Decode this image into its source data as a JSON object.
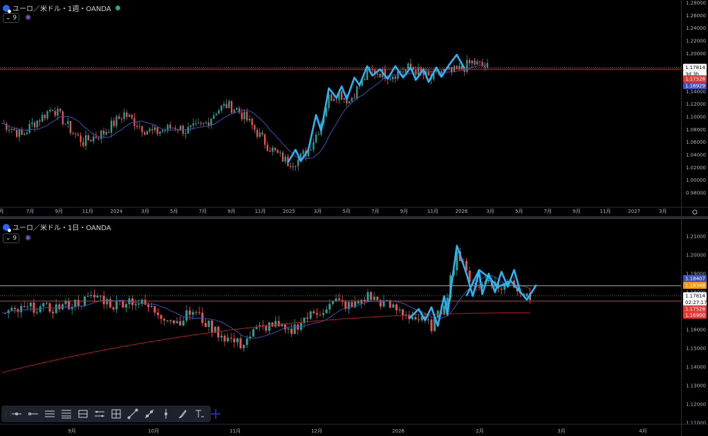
{
  "colors": {
    "up": "#26a69a",
    "down": "#ef5350",
    "zigzag": "#29b6f6",
    "ma_fast": "#3f51b5",
    "ma_slow": "#b71c1c",
    "level_red": "#e53935",
    "level_orange": "#ff9800",
    "grid": "#2a2e39",
    "axis_text": "#b2b5be"
  },
  "toolbar": {
    "icons": [
      "horizontal-line-icon",
      "horizontal-ray-icon",
      "parallel-channel-icon",
      "fib-retracement-icon",
      "price-range-icon",
      "date-range-icon",
      "long-position-icon",
      "trend-line-icon",
      "pitchfork-icon",
      "vertical-line-icon",
      "brush-icon",
      "text-icon",
      "crosshair-icon"
    ]
  },
  "chart_data": [
    {
      "type": "candlestick",
      "title": "ユーロ／米ドル・1週・OANDA",
      "indicator_label": "9",
      "x_tick_labels": [
        "月",
        "7月",
        "9月",
        "11月",
        "2024",
        "3月",
        "5月",
        "7月",
        "9月",
        "11月",
        "2025",
        "3月",
        "5月",
        "7月",
        "9月",
        "11月",
        "2026",
        "3月",
        "5月",
        "7月",
        "9月",
        "11月",
        "2027",
        "3月"
      ],
      "y_tick_labels": [
        "1.28000",
        "1.26000",
        "1.24000",
        "1.22000",
        "1.20000",
        "1.18000",
        "1.16000",
        "1.14000",
        "1.12000",
        "1.10000",
        "1.08000",
        "1.06000",
        "1.04000",
        "1.02000",
        "1.00000",
        "0.98000"
      ],
      "ylim": [
        0.97,
        1.29
      ],
      "close_path": [
        [
          0,
          1.09
        ],
        [
          4,
          1.082
        ],
        [
          8,
          1.07
        ],
        [
          12,
          1.088
        ],
        [
          16,
          1.1
        ],
        [
          20,
          1.115
        ],
        [
          24,
          1.095
        ],
        [
          28,
          1.075
        ],
        [
          32,
          1.06
        ],
        [
          36,
          1.068
        ],
        [
          40,
          1.075
        ],
        [
          44,
          1.09
        ],
        [
          48,
          1.105
        ],
        [
          52,
          1.092
        ],
        [
          56,
          1.08
        ],
        [
          60,
          1.075
        ],
        [
          64,
          1.08
        ],
        [
          68,
          1.085
        ],
        [
          72,
          1.078
        ],
        [
          76,
          1.082
        ],
        [
          80,
          1.09
        ],
        [
          84,
          1.11
        ],
        [
          88,
          1.118
        ],
        [
          92,
          1.112
        ],
        [
          96,
          1.095
        ],
        [
          100,
          1.075
        ],
        [
          104,
          1.055
        ],
        [
          108,
          1.04
        ],
        [
          112,
          1.028
        ],
        [
          116,
          1.032
        ],
        [
          120,
          1.048
        ],
        [
          124,
          1.08
        ],
        [
          128,
          1.13
        ],
        [
          132,
          1.138
        ],
        [
          136,
          1.125
        ],
        [
          140,
          1.15
        ],
        [
          144,
          1.172
        ],
        [
          148,
          1.17
        ],
        [
          152,
          1.165
        ],
        [
          156,
          1.172
        ],
        [
          160,
          1.178
        ],
        [
          164,
          1.168
        ],
        [
          168,
          1.16
        ],
        [
          172,
          1.172
        ],
        [
          176,
          1.17
        ],
        [
          180,
          1.176
        ],
        [
          184,
          1.186
        ],
        [
          188,
          1.18
        ],
        [
          190,
          1.1781
        ]
      ],
      "current_price_label": "1.17814",
      "countdown_label": "3d 3h",
      "price_labels": [
        {
          "text": "1.17528",
          "color": "#e53935"
        },
        {
          "text": "1.16929",
          "color": "#3f51b5"
        }
      ],
      "level": 1.17528,
      "zigzag": [
        [
          112,
          1.028
        ],
        [
          115,
          1.048
        ],
        [
          117,
          1.03
        ],
        [
          120,
          1.048
        ],
        [
          123,
          1.103
        ],
        [
          125,
          1.078
        ],
        [
          128,
          1.145
        ],
        [
          131,
          1.13
        ],
        [
          133,
          1.148
        ],
        [
          135,
          1.128
        ],
        [
          138,
          1.162
        ],
        [
          140,
          1.15
        ],
        [
          143,
          1.18
        ],
        [
          145,
          1.165
        ],
        [
          148,
          1.175
        ],
        [
          151,
          1.16
        ],
        [
          154,
          1.18
        ],
        [
          157,
          1.162
        ],
        [
          160,
          1.178
        ],
        [
          162,
          1.158
        ],
        [
          165,
          1.175
        ],
        [
          167,
          1.155
        ],
        [
          170,
          1.178
        ],
        [
          172,
          1.163
        ],
        [
          175,
          1.182
        ],
        [
          178,
          1.198
        ],
        [
          181,
          1.176
        ]
      ]
    },
    {
      "type": "candlestick",
      "title": "ユーロ／米ドル・1日・OANDA",
      "indicator_label": "9",
      "x_tick_labels": [
        "9月",
        "10月",
        "11月",
        "12月",
        "2026",
        "2月",
        "3月",
        "4月"
      ],
      "y_tick_labels": [
        "1.21000",
        "1.20000",
        "1.19000",
        "1.18000",
        "1.17000",
        "1.16000",
        "1.15000",
        "1.14000",
        "1.13000",
        "1.12000",
        "1.11000"
      ],
      "ylim": [
        1.108,
        1.212
      ],
      "close_path": [
        [
          0,
          1.168
        ],
        [
          5,
          1.17
        ],
        [
          10,
          1.172
        ],
        [
          15,
          1.171
        ],
        [
          20,
          1.173
        ],
        [
          25,
          1.175
        ],
        [
          30,
          1.178
        ],
        [
          35,
          1.173
        ],
        [
          40,
          1.176
        ],
        [
          45,
          1.173
        ],
        [
          50,
          1.168
        ],
        [
          55,
          1.164
        ],
        [
          60,
          1.17
        ],
        [
          65,
          1.162
        ],
        [
          70,
          1.156
        ],
        [
          75,
          1.152
        ],
        [
          80,
          1.16
        ],
        [
          85,
          1.163
        ],
        [
          90,
          1.158
        ],
        [
          95,
          1.166
        ],
        [
          100,
          1.17
        ],
        [
          105,
          1.175
        ],
        [
          110,
          1.172
        ],
        [
          115,
          1.178
        ],
        [
          120,
          1.174
        ],
        [
          125,
          1.17
        ],
        [
          130,
          1.166
        ],
        [
          135,
          1.162
        ],
        [
          138,
          1.17
        ],
        [
          140,
          1.18
        ],
        [
          143,
          1.202
        ],
        [
          146,
          1.19
        ],
        [
          150,
          1.182
        ],
        [
          153,
          1.188
        ],
        [
          156,
          1.182
        ],
        [
          160,
          1.186
        ],
        [
          163,
          1.18
        ],
        [
          166,
          1.178
        ]
      ],
      "current_price_label": "1.17814",
      "countdown_label": "02:27:17",
      "price_labels": [
        {
          "text": "1.18407",
          "color": "#3f51b5"
        },
        {
          "text": "1.18348",
          "color": "#ff9800"
        },
        {
          "text": "1.17528",
          "color": "#e53935"
        },
        {
          "text": "1.16900",
          "color": "#e53935"
        }
      ],
      "levels": [
        {
          "price": 1.18348,
          "color": "#ff9800"
        },
        {
          "price": 1.17528,
          "color": "#e53935"
        }
      ],
      "zigzag": [
        [
          128,
          1.166
        ],
        [
          131,
          1.171
        ],
        [
          133,
          1.165
        ],
        [
          135,
          1.172
        ],
        [
          137,
          1.162
        ],
        [
          139,
          1.178
        ],
        [
          140,
          1.168
        ],
        [
          143,
          1.205
        ],
        [
          146,
          1.19
        ],
        [
          148,
          1.178
        ],
        [
          150,
          1.191
        ],
        [
          151,
          1.179
        ],
        [
          153,
          1.19
        ],
        [
          155,
          1.18
        ],
        [
          157,
          1.191
        ],
        [
          159,
          1.183
        ],
        [
          161,
          1.192
        ],
        [
          163,
          1.18
        ],
        [
          165,
          1.176
        ],
        [
          168,
          1.184
        ]
      ],
      "zigzag_upper": [
        [
          146,
          1.178
        ],
        [
          150,
          1.192
        ],
        [
          153,
          1.188
        ],
        [
          156,
          1.183
        ],
        [
          160,
          1.186
        ],
        [
          163,
          1.18
        ]
      ]
    }
  ]
}
